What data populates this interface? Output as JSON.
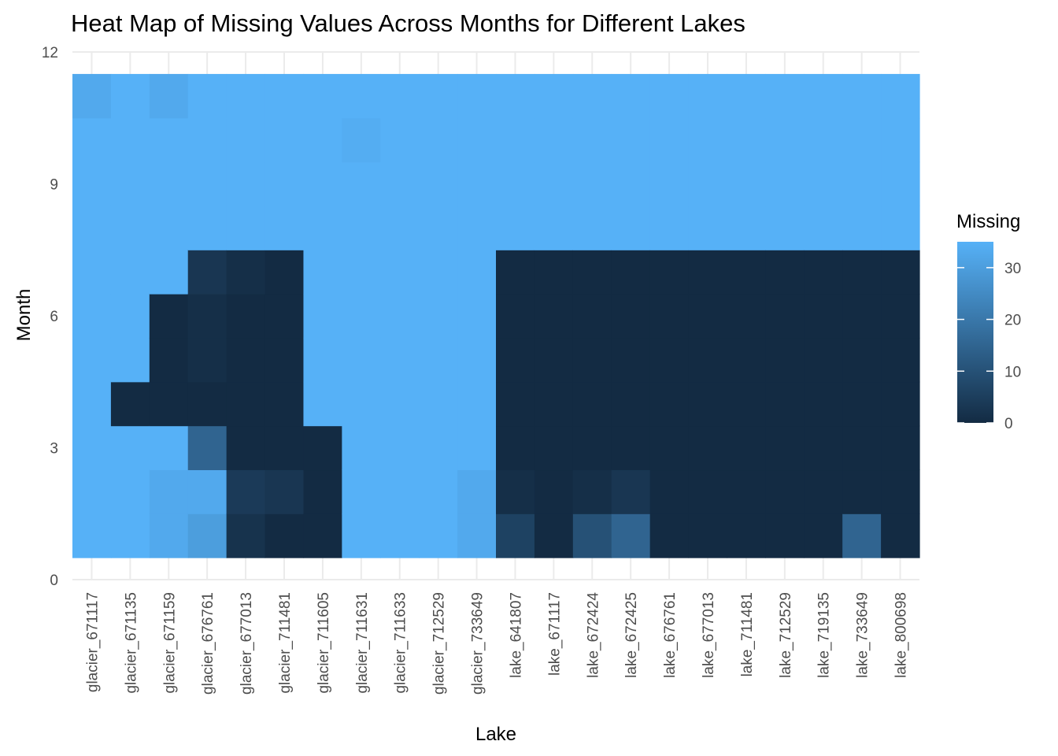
{
  "chart_data": {
    "type": "heatmap",
    "title": "Heat Map of Missing Values Across Months for Different Lakes",
    "xlabel": "Lake",
    "ylabel": "Month",
    "x_categories": [
      "glacier_671117",
      "glacier_671135",
      "glacier_671159",
      "glacier_676761",
      "glacier_677013",
      "glacier_711481",
      "glacier_711605",
      "glacier_711631",
      "glacier_711633",
      "glacier_712529",
      "glacier_733649",
      "lake_641807",
      "lake_671117",
      "lake_672424",
      "lake_672425",
      "lake_676761",
      "lake_677013",
      "lake_711481",
      "lake_712529",
      "lake_719135",
      "lake_733649",
      "lake_800698"
    ],
    "y_values": [
      1,
      2,
      3,
      4,
      5,
      6,
      7,
      8,
      9,
      10,
      11
    ],
    "y_ticks": [
      0,
      3,
      6,
      9,
      12
    ],
    "ylim": [
      0,
      12
    ],
    "grid": true,
    "legend": {
      "title": "Missing",
      "position": "right",
      "ticks": [
        0,
        10,
        20,
        30
      ],
      "range": [
        0,
        35
      ],
      "color_low": "#132B43",
      "color_high": "#56B1F7"
    },
    "values": [
      [
        35,
        35,
        35,
        35,
        35,
        35,
        35,
        35,
        35,
        35,
        33
      ],
      [
        35,
        35,
        35,
        0,
        35,
        35,
        35,
        35,
        35,
        35,
        35
      ],
      [
        33,
        33,
        35,
        0,
        0,
        0,
        35,
        35,
        35,
        35,
        33
      ],
      [
        30,
        33,
        15,
        0,
        1,
        1,
        3,
        35,
        35,
        35,
        35
      ],
      [
        2,
        4,
        0,
        0,
        0,
        0,
        1,
        35,
        35,
        35,
        35
      ],
      [
        0,
        3,
        0,
        0,
        0,
        0,
        0,
        35,
        35,
        35,
        35
      ],
      [
        0,
        0,
        0,
        35,
        35,
        35,
        35,
        35,
        35,
        35,
        35
      ],
      [
        35,
        35,
        35,
        35,
        35,
        35,
        35,
        35,
        35,
        34,
        35
      ],
      [
        35,
        35,
        35,
        35,
        35,
        35,
        35,
        35,
        35,
        35,
        35
      ],
      [
        35,
        35,
        35,
        35,
        35,
        35,
        35,
        35,
        35,
        35,
        35
      ],
      [
        33,
        33,
        35,
        35,
        35,
        35,
        35,
        35,
        35,
        35,
        35
      ],
      [
        6,
        1,
        0,
        0,
        0,
        0,
        0,
        35,
        35,
        35,
        35
      ],
      [
        0,
        0,
        0,
        0,
        0,
        0,
        0,
        35,
        35,
        35,
        35
      ],
      [
        10,
        1,
        0,
        0,
        0,
        0,
        0,
        35,
        35,
        35,
        35
      ],
      [
        15,
        3,
        0,
        0,
        0,
        0,
        0,
        35,
        35,
        35,
        35
      ],
      [
        0,
        0,
        0,
        0,
        0,
        0,
        0,
        35,
        35,
        35,
        35
      ],
      [
        0,
        0,
        0,
        0,
        0,
        0,
        0,
        35,
        35,
        35,
        35
      ],
      [
        0,
        0,
        0,
        0,
        0,
        0,
        0,
        35,
        35,
        35,
        35
      ],
      [
        0,
        0,
        0,
        0,
        0,
        0,
        0,
        35,
        35,
        35,
        35
      ],
      [
        0,
        0,
        0,
        0,
        0,
        0,
        0,
        35,
        35,
        35,
        35
      ],
      [
        15,
        0,
        0,
        0,
        0,
        0,
        0,
        35,
        35,
        35,
        35
      ],
      [
        0,
        0,
        0,
        0,
        0,
        0,
        0,
        35,
        35,
        35,
        35
      ]
    ]
  }
}
